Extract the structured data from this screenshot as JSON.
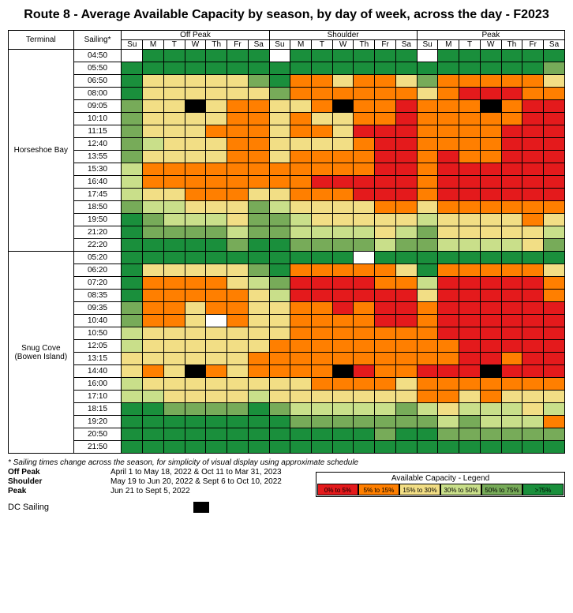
{
  "title": "Route 8 - Average Available Capacity by season, by day of week, across the day - F2023",
  "headers": {
    "terminal": "Terminal",
    "sailing": "Sailing*"
  },
  "seasons": [
    "Off Peak",
    "Shoulder",
    "Peak"
  ],
  "days": [
    "Su",
    "M",
    "T",
    "W",
    "Th",
    "Fr",
    "Sa"
  ],
  "colors": {
    "c0": "#e41a1c",
    "c1": "#ff7f00",
    "c2": "#f2de85",
    "c3": "#c9df8a",
    "c4": "#77ab59",
    "c5": "#1a8f3c",
    "dc": "#000000",
    "blank": "#ffffff"
  },
  "terminals": [
    {
      "name": "Horseshoe Bay",
      "rows": [
        {
          "t": "04:50",
          "c": [
            "blank",
            "c5",
            "c5",
            "c5",
            "c5",
            "c5",
            "c5",
            "blank",
            "c5",
            "c5",
            "c5",
            "c5",
            "c5",
            "c5",
            "blank",
            "c5",
            "c5",
            "c5",
            "c5",
            "c5",
            "c5"
          ]
        },
        {
          "t": "05:50",
          "c": [
            "c5",
            "c5",
            "c5",
            "c5",
            "c5",
            "c5",
            "c5",
            "c5",
            "c5",
            "c5",
            "c5",
            "c5",
            "c5",
            "c5",
            "c5",
            "c5",
            "c5",
            "c5",
            "c5",
            "c5",
            "c4"
          ]
        },
        {
          "t": "06:50",
          "c": [
            "c5",
            "c2",
            "c2",
            "c2",
            "c2",
            "c2",
            "c4",
            "c5",
            "c1",
            "c1",
            "c2",
            "c1",
            "c1",
            "c2",
            "c4",
            "c1",
            "c1",
            "c1",
            "c1",
            "c1",
            "c2"
          ]
        },
        {
          "t": "08:00",
          "c": [
            "c5",
            "c2",
            "c2",
            "c2",
            "c2",
            "c2",
            "c2",
            "c4",
            "c1",
            "c1",
            "c1",
            "c1",
            "c1",
            "c1",
            "c2",
            "c1",
            "c0",
            "c0",
            "c0",
            "c1",
            "c1"
          ]
        },
        {
          "t": "09:05",
          "c": [
            "c4",
            "c2",
            "c2",
            "dc",
            "c2",
            "c1",
            "c1",
            "c2",
            "c2",
            "c1",
            "dc",
            "c1",
            "c1",
            "c0",
            "c1",
            "c1",
            "c1",
            "dc",
            "c1",
            "c0",
            "c0"
          ]
        },
        {
          "t": "10:10",
          "c": [
            "c4",
            "c2",
            "c2",
            "c2",
            "c2",
            "c1",
            "c1",
            "c2",
            "c1",
            "c2",
            "c2",
            "c1",
            "c1",
            "c0",
            "c1",
            "c1",
            "c1",
            "c1",
            "c1",
            "c0",
            "c0"
          ]
        },
        {
          "t": "11:15",
          "c": [
            "c4",
            "c2",
            "c2",
            "c2",
            "c1",
            "c1",
            "c1",
            "c2",
            "c1",
            "c1",
            "c2",
            "c0",
            "c0",
            "c0",
            "c1",
            "c1",
            "c1",
            "c1",
            "c0",
            "c0",
            "c0"
          ]
        },
        {
          "t": "12:40",
          "c": [
            "c4",
            "c3",
            "c2",
            "c2",
            "c2",
            "c1",
            "c1",
            "c2",
            "c2",
            "c2",
            "c2",
            "c1",
            "c0",
            "c0",
            "c1",
            "c1",
            "c1",
            "c1",
            "c0",
            "c0",
            "c0"
          ]
        },
        {
          "t": "13:55",
          "c": [
            "c4",
            "c2",
            "c2",
            "c2",
            "c2",
            "c1",
            "c1",
            "c2",
            "c1",
            "c1",
            "c1",
            "c1",
            "c0",
            "c0",
            "c1",
            "c0",
            "c1",
            "c1",
            "c0",
            "c0",
            "c0"
          ]
        },
        {
          "t": "15:30",
          "c": [
            "c3",
            "c1",
            "c1",
            "c1",
            "c1",
            "c1",
            "c1",
            "c1",
            "c1",
            "c1",
            "c1",
            "c1",
            "c0",
            "c0",
            "c1",
            "c0",
            "c0",
            "c0",
            "c0",
            "c0",
            "c0"
          ]
        },
        {
          "t": "16:40",
          "c": [
            "c3",
            "c1",
            "c1",
            "c1",
            "c1",
            "c1",
            "c1",
            "c1",
            "c1",
            "c0",
            "c0",
            "c0",
            "c0",
            "c0",
            "c1",
            "c0",
            "c0",
            "c0",
            "c0",
            "c0",
            "c0"
          ]
        },
        {
          "t": "17:45",
          "c": [
            "c3",
            "c2",
            "c2",
            "c1",
            "c1",
            "c1",
            "c2",
            "c2",
            "c1",
            "c1",
            "c1",
            "c0",
            "c0",
            "c0",
            "c1",
            "c0",
            "c0",
            "c0",
            "c0",
            "c0",
            "c0"
          ]
        },
        {
          "t": "18:50",
          "c": [
            "c4",
            "c3",
            "c3",
            "c2",
            "c2",
            "c2",
            "c4",
            "c3",
            "c2",
            "c2",
            "c2",
            "c2",
            "c1",
            "c1",
            "c2",
            "c1",
            "c1",
            "c1",
            "c1",
            "c1",
            "c1"
          ]
        },
        {
          "t": "19:50",
          "c": [
            "c5",
            "c4",
            "c3",
            "c3",
            "c3",
            "c2",
            "c4",
            "c4",
            "c3",
            "c2",
            "c2",
            "c2",
            "c2",
            "c2",
            "c3",
            "c2",
            "c2",
            "c2",
            "c2",
            "c1",
            "c2"
          ]
        },
        {
          "t": "21:20",
          "c": [
            "c5",
            "c4",
            "c4",
            "c4",
            "c4",
            "c3",
            "c4",
            "c4",
            "c3",
            "c3",
            "c3",
            "c3",
            "c2",
            "c3",
            "c4",
            "c2",
            "c2",
            "c2",
            "c2",
            "c2",
            "c3"
          ]
        },
        {
          "t": "22:20",
          "c": [
            "c5",
            "c5",
            "c5",
            "c5",
            "c5",
            "c4",
            "c5",
            "c5",
            "c4",
            "c4",
            "c4",
            "c4",
            "c3",
            "c4",
            "c4",
            "c3",
            "c3",
            "c3",
            "c3",
            "c2",
            "c4"
          ]
        }
      ]
    },
    {
      "name": "Snug Cove (Bowen Island)",
      "rows": [
        {
          "t": "05:20",
          "c": [
            "c5",
            "c5",
            "c5",
            "c5",
            "c5",
            "c5",
            "c5",
            "c5",
            "c5",
            "c5",
            "c5",
            "blank",
            "c5",
            "c5",
            "c5",
            "c5",
            "c5",
            "c5",
            "c5",
            "c5",
            "c5"
          ]
        },
        {
          "t": "06:20",
          "c": [
            "c5",
            "c2",
            "c2",
            "c2",
            "c2",
            "c2",
            "c4",
            "c5",
            "c1",
            "c1",
            "c1",
            "c1",
            "c1",
            "c2",
            "c5",
            "c1",
            "c1",
            "c1",
            "c1",
            "c1",
            "c2"
          ]
        },
        {
          "t": "07:20",
          "c": [
            "c5",
            "c1",
            "c1",
            "c1",
            "c1",
            "c2",
            "c3",
            "c4",
            "c0",
            "c0",
            "c0",
            "c0",
            "c1",
            "c1",
            "c3",
            "c0",
            "c0",
            "c0",
            "c0",
            "c0",
            "c1"
          ]
        },
        {
          "t": "08:35",
          "c": [
            "c5",
            "c1",
            "c1",
            "c1",
            "c1",
            "c1",
            "c2",
            "c3",
            "c0",
            "c0",
            "c0",
            "c0",
            "c0",
            "c0",
            "c2",
            "c0",
            "c0",
            "c0",
            "c0",
            "c0",
            "c1"
          ]
        },
        {
          "t": "09:35",
          "c": [
            "c4",
            "c1",
            "c1",
            "c2",
            "c1",
            "c1",
            "c2",
            "c2",
            "c1",
            "c1",
            "c0",
            "c1",
            "c0",
            "c0",
            "c1",
            "c0",
            "c0",
            "c0",
            "c0",
            "c0",
            "c0"
          ]
        },
        {
          "t": "10:40",
          "c": [
            "c4",
            "c1",
            "c1",
            "c2",
            "blank",
            "c1",
            "c2",
            "c2",
            "c1",
            "c1",
            "c1",
            "c1",
            "c0",
            "c0",
            "c1",
            "c0",
            "c0",
            "c0",
            "c0",
            "c0",
            "c0"
          ]
        },
        {
          "t": "10:50",
          "c": [
            "c3",
            "c2",
            "c2",
            "c2",
            "c2",
            "c2",
            "c2",
            "c2",
            "c1",
            "c1",
            "c1",
            "c1",
            "c1",
            "c1",
            "c1",
            "c0",
            "c0",
            "c0",
            "c0",
            "c0",
            "c0"
          ]
        },
        {
          "t": "12:05",
          "c": [
            "c3",
            "c2",
            "c2",
            "c2",
            "c2",
            "c2",
            "c2",
            "c1",
            "c1",
            "c1",
            "c1",
            "c1",
            "c1",
            "c1",
            "c1",
            "c1",
            "c0",
            "c0",
            "c0",
            "c0",
            "c0"
          ]
        },
        {
          "t": "13:15",
          "c": [
            "c2",
            "c2",
            "c2",
            "c2",
            "c2",
            "c2",
            "c1",
            "c1",
            "c1",
            "c1",
            "c1",
            "c1",
            "c1",
            "c1",
            "c1",
            "c1",
            "c0",
            "c0",
            "c1",
            "c0",
            "c0"
          ]
        },
        {
          "t": "14:40",
          "c": [
            "c2",
            "c1",
            "c2",
            "dc",
            "c1",
            "c2",
            "c1",
            "c1",
            "c1",
            "c1",
            "dc",
            "c0",
            "c1",
            "c1",
            "c0",
            "c0",
            "c0",
            "dc",
            "c0",
            "c0",
            "c0"
          ]
        },
        {
          "t": "16:00",
          "c": [
            "c3",
            "c2",
            "c2",
            "c2",
            "c2",
            "c2",
            "c2",
            "c2",
            "c2",
            "c1",
            "c1",
            "c1",
            "c1",
            "c2",
            "c1",
            "c1",
            "c1",
            "c1",
            "c1",
            "c1",
            "c1"
          ]
        },
        {
          "t": "17:10",
          "c": [
            "c3",
            "c3",
            "c2",
            "c2",
            "c2",
            "c2",
            "c3",
            "c2",
            "c2",
            "c2",
            "c2",
            "c2",
            "c2",
            "c2",
            "c1",
            "c1",
            "c2",
            "c1",
            "c2",
            "c2",
            "c2"
          ]
        },
        {
          "t": "18:15",
          "c": [
            "c5",
            "c5",
            "c4",
            "c4",
            "c4",
            "c4",
            "c5",
            "c4",
            "c3",
            "c3",
            "c3",
            "c3",
            "c3",
            "c4",
            "c3",
            "c2",
            "c3",
            "c3",
            "c3",
            "c2",
            "c3"
          ]
        },
        {
          "t": "19:20",
          "c": [
            "c5",
            "c5",
            "c5",
            "c5",
            "c5",
            "c5",
            "c5",
            "c5",
            "c4",
            "c4",
            "c4",
            "c4",
            "c4",
            "c4",
            "c4",
            "c3",
            "c4",
            "c3",
            "c3",
            "c3",
            "c1"
          ]
        },
        {
          "t": "20:50",
          "c": [
            "c5",
            "c5",
            "c5",
            "c5",
            "c5",
            "c5",
            "c5",
            "c5",
            "c5",
            "c5",
            "c5",
            "c5",
            "c4",
            "c5",
            "c5",
            "c4",
            "c4",
            "c4",
            "c4",
            "c4",
            "c4"
          ]
        },
        {
          "t": "21:50",
          "c": [
            "c5",
            "c5",
            "c5",
            "c5",
            "c5",
            "c5",
            "c5",
            "c5",
            "c5",
            "c5",
            "c5",
            "c5",
            "c5",
            "c5",
            "c5",
            "c5",
            "c5",
            "c5",
            "c5",
            "c5",
            "c5"
          ]
        }
      ]
    }
  ],
  "footnote": "* Sailing times change across the season, for simplicity of visual display using approximate schedule",
  "season_defs": [
    {
      "label": "Off Peak",
      "dates": "April 1 to May 18, 2022 & Oct 11 to Mar 31, 2023"
    },
    {
      "label": "Shoulder",
      "dates": "May 19 to Jun 20, 2022 & Sept 6 to Oct 10, 2022"
    },
    {
      "label": "Peak",
      "dates": "Jun 21 to Sept 5, 2022"
    }
  ],
  "dc_label": "DC Sailing",
  "legend": {
    "title": "Available Capacity - Legend",
    "items": [
      {
        "label": "0% to 5%",
        "key": "c0"
      },
      {
        "label": "5% to 15%",
        "key": "c1"
      },
      {
        "label": "15% to 30%",
        "key": "c2"
      },
      {
        "label": "30% to 50%",
        "key": "c3"
      },
      {
        "label": "50% to 75%",
        "key": "c4"
      },
      {
        "label": ">75%",
        "key": "c5"
      }
    ]
  }
}
